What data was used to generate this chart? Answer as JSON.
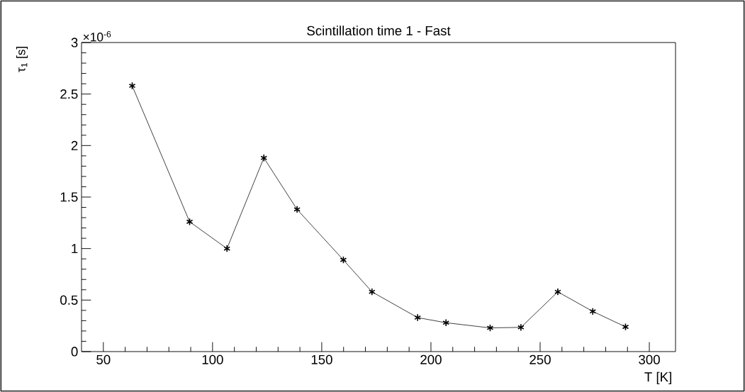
{
  "chart_data": {
    "type": "line",
    "title": "Scintillation time 1 - Fast",
    "xlabel": "T [K]",
    "ylabel": "τ$_{1}$ [s]",
    "annotations": [
      "×10$^{-6}$"
    ],
    "x": [
      63.2,
      89.5,
      106.6,
      123.5,
      138.7,
      159.9,
      173.0,
      193.9,
      206.9,
      227.1,
      241.2,
      258.1,
      274.1,
      289.1
    ],
    "series": [
      {
        "color": "#333333",
        "values": [
          2.58,
          1.26,
          1.0,
          1.88,
          1.38,
          0.89,
          0.58,
          0.33,
          0.28,
          0.23,
          0.235,
          0.58,
          0.39,
          0.24
        ]
      }
    ],
    "xlim": [
      40,
      312
    ],
    "ylim": [
      0,
      3
    ],
    "xticks": [
      50,
      100,
      150,
      200,
      250,
      300
    ],
    "yticks": [
      0,
      0.5,
      1,
      1.5,
      2,
      2.5,
      3
    ],
    "marker": "cross",
    "line_style": "solid",
    "grid": false
  }
}
